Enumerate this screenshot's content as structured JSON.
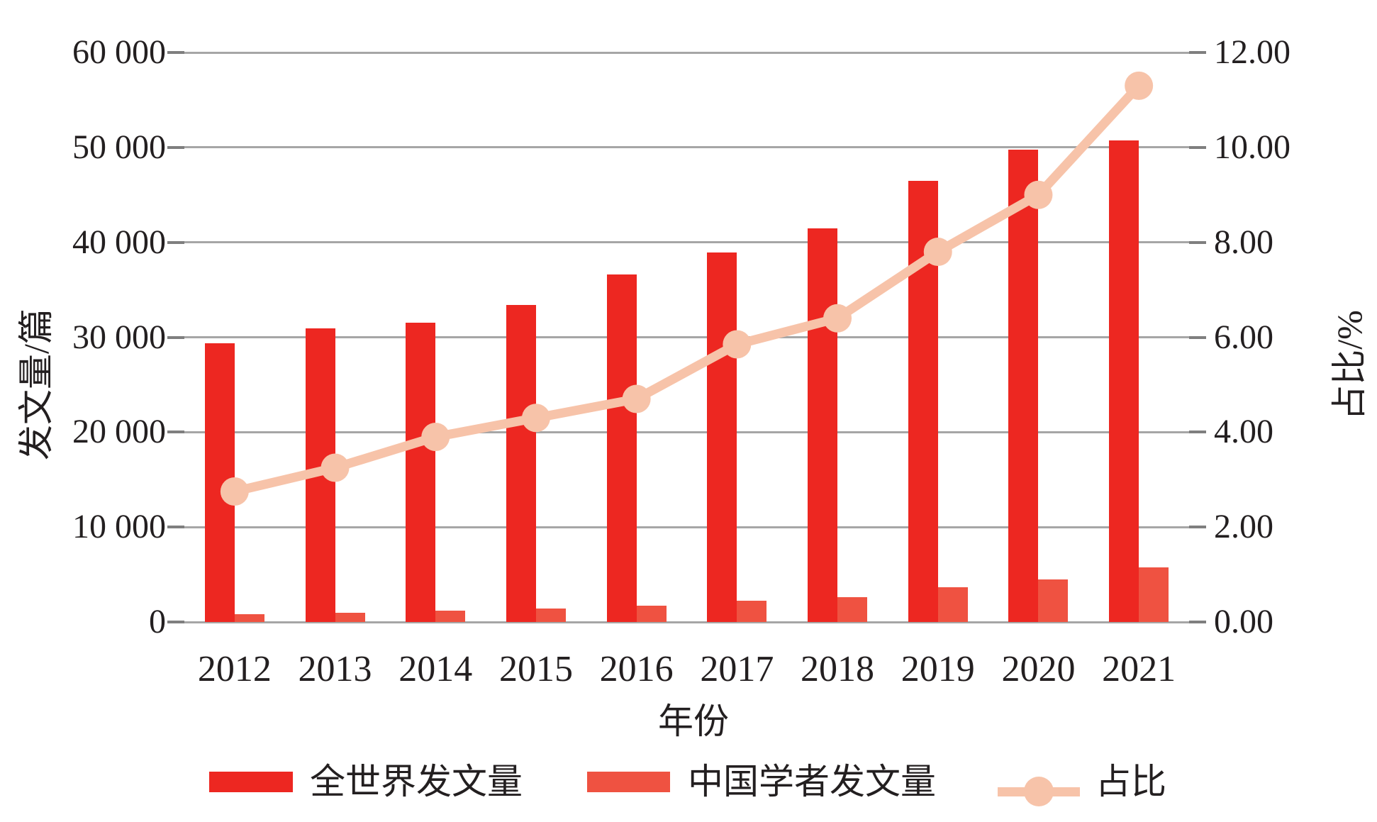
{
  "chart_data": {
    "type": "bar+line",
    "title": "",
    "categories": [
      "2012",
      "2013",
      "2014",
      "2015",
      "2016",
      "2017",
      "2018",
      "2019",
      "2020",
      "2021"
    ],
    "series": [
      {
        "name": "全世界发文量",
        "type": "bar",
        "axis": "left",
        "color": "#ED2721",
        "values": [
          29400,
          30900,
          31500,
          33400,
          36600,
          38900,
          41500,
          46500,
          49800,
          50700
        ]
      },
      {
        "name": "中国学者发文量",
        "type": "bar",
        "axis": "left",
        "color": "#EF5241",
        "values": [
          810,
          1000,
          1230,
          1440,
          1720,
          2270,
          2650,
          3630,
          4480,
          5730
        ]
      },
      {
        "name": "占比",
        "type": "line",
        "axis": "right",
        "color": "#F7C3A9",
        "values": [
          2.75,
          3.25,
          3.9,
          4.3,
          4.7,
          5.85,
          6.4,
          7.8,
          9.0,
          11.3
        ]
      }
    ],
    "x_axis": {
      "title": "年份"
    },
    "left_axis": {
      "title": "发文量/篇",
      "range": [
        0,
        60000
      ],
      "tick_labels": [
        "0",
        "10 000",
        "20 000",
        "30 000",
        "40 000",
        "50 000",
        "60 000"
      ]
    },
    "right_axis": {
      "title": "占比/%",
      "range": [
        0,
        12
      ],
      "tick_labels": [
        "0.00",
        "2.00",
        "4.00",
        "6.00",
        "8.00",
        "10.00",
        "12.00"
      ]
    },
    "grid": "horizontal",
    "legend_position": "bottom"
  },
  "colors": {
    "world_bar": "#ED2721",
    "china_bar": "#EF5241",
    "ratio_line": "#F7C3A9",
    "gridline": "#A6A6A6",
    "tick": "#7F7F7F",
    "text": "#231F20",
    "background": "#FFFFFF"
  }
}
